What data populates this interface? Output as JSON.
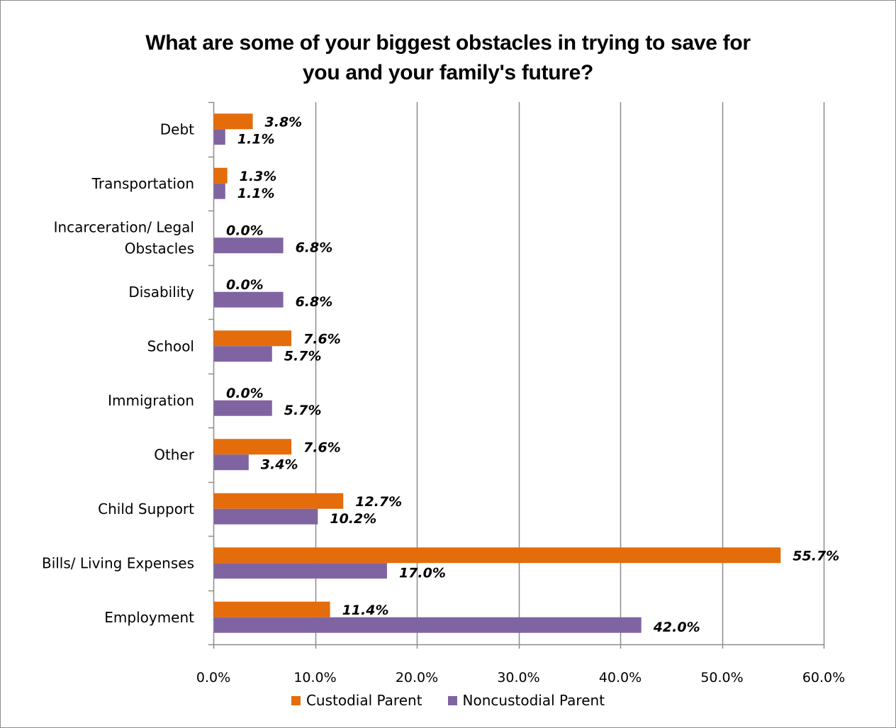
{
  "chart_data": {
    "type": "bar",
    "orientation": "horizontal",
    "title_lines": [
      "What are some of your biggest obstacles in trying to save for",
      "you and your family's future?"
    ],
    "categories": [
      "Debt",
      "Transportation",
      "Incarceration/ Legal Obstacles",
      "Disability",
      "School",
      "Immigration",
      "Other",
      "Child Support",
      "Bills/ Living Expenses",
      "Employment"
    ],
    "category_label_lines": [
      [
        "Debt"
      ],
      [
        "Transportation"
      ],
      [
        "Incarceration/ Legal",
        "Obstacles"
      ],
      [
        "Disability"
      ],
      [
        "School"
      ],
      [
        "Immigration"
      ],
      [
        "Other"
      ],
      [
        "Child Support"
      ],
      [
        "Bills/ Living Expenses"
      ],
      [
        "Employment"
      ]
    ],
    "series": [
      {
        "name": "Custodial Parent",
        "color": "#e46c0a",
        "values": [
          3.8,
          1.3,
          0.0,
          0.0,
          7.6,
          0.0,
          7.6,
          12.7,
          55.7,
          11.4
        ],
        "labels": [
          "3.8%",
          "1.3%",
          "0.0%",
          "0.0%",
          "7.6%",
          "0.0%",
          "7.6%",
          "12.7%",
          "55.7%",
          "11.4%"
        ]
      },
      {
        "name": "Noncustodial Parent",
        "color": "#8064a2",
        "values": [
          1.1,
          1.1,
          6.8,
          6.8,
          5.7,
          5.7,
          3.4,
          10.2,
          17.0,
          42.0
        ],
        "labels": [
          "1.1%",
          "1.1%",
          "6.8%",
          "6.8%",
          "5.7%",
          "5.7%",
          "3.4%",
          "10.2%",
          "17.0%",
          "42.0%"
        ]
      }
    ],
    "xlim": [
      0,
      60
    ],
    "x_ticks": [
      0,
      10,
      20,
      30,
      40,
      50,
      60
    ],
    "x_tick_labels": [
      "0.0%",
      "10.0%",
      "20.0%",
      "30.0%",
      "40.0%",
      "50.0%",
      "60.0%"
    ],
    "grid": "vertical major gridlines",
    "legend_position": "bottom"
  }
}
